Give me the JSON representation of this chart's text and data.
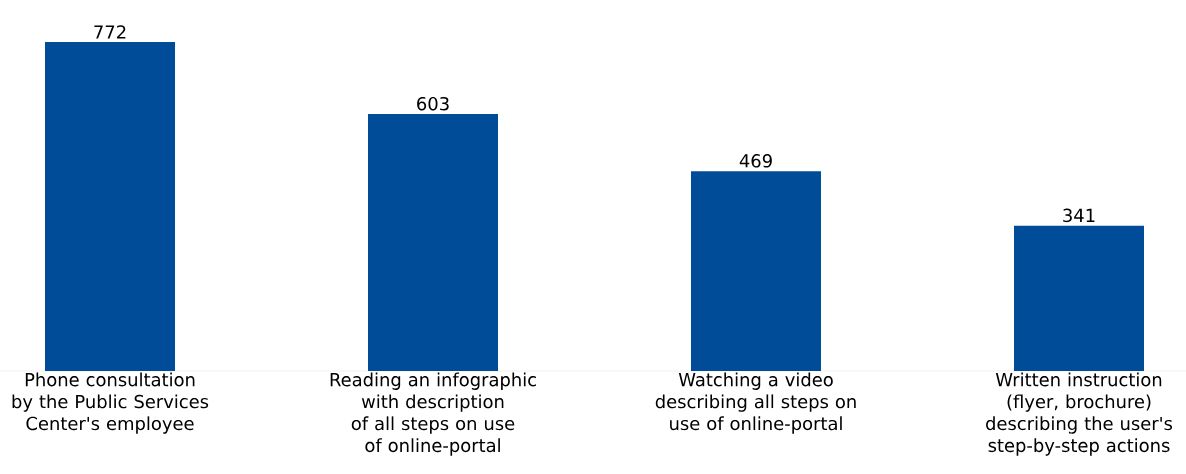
{
  "chart_data": {
    "type": "bar",
    "categories": [
      "Phone consultation by the Public Services Center's employee",
      "Reading an infographic with description of all steps on use of online-portal",
      "Watching a video describing all steps on use of online-portal",
      "Written instruction (flyer, brochure) describing the user's step-by-step actions"
    ],
    "values": [
      772,
      603,
      469,
      341
    ],
    "color": "#004c99",
    "data_labels": true
  }
}
